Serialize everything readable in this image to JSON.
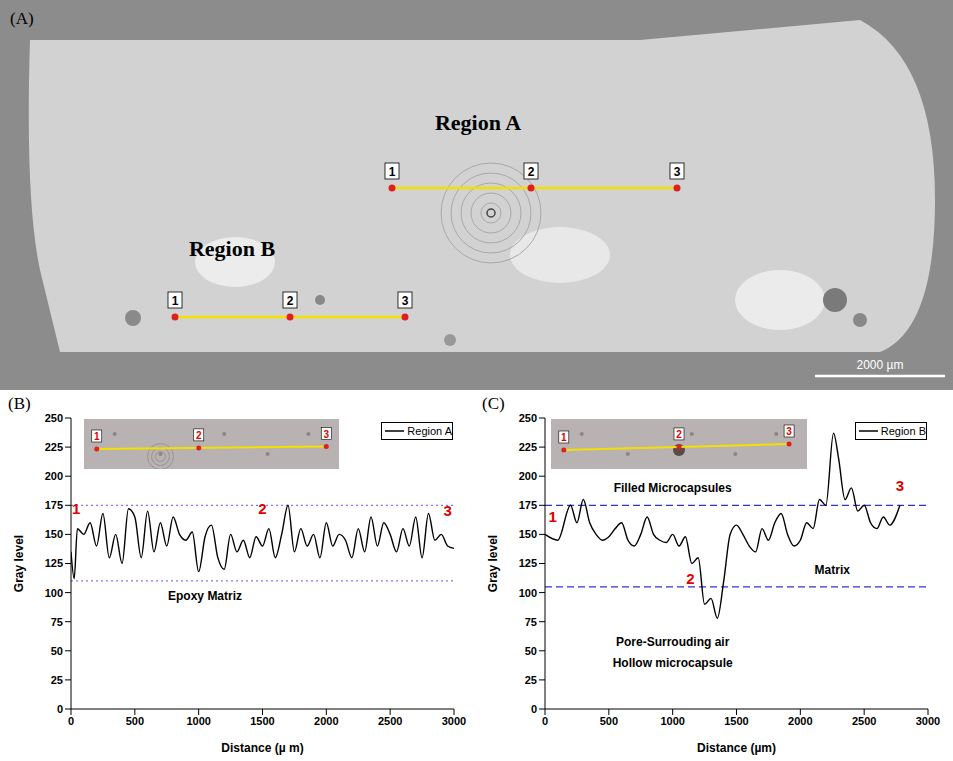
{
  "image": {
    "letter": "(A)",
    "regions": [
      {
        "label": "Region A",
        "points": [
          "1",
          "2",
          "3"
        ]
      },
      {
        "label": "Region B",
        "points": [
          "1",
          "2",
          "3"
        ]
      }
    ],
    "scale_bar": "2000 µm"
  },
  "chart_data": [
    {
      "panel": "(B)",
      "type": "line",
      "x_label": "Distance (µ m)",
      "y_label": "Gray level",
      "xlim": [
        0,
        3000
      ],
      "xticks": [
        0,
        500,
        1000,
        1500,
        2000,
        2500,
        3000
      ],
      "ylim": [
        0,
        250
      ],
      "yticks": [
        0,
        25,
        50,
        75,
        100,
        125,
        150,
        175,
        200,
        225,
        250
      ],
      "legend": "upper right",
      "series": [
        {
          "name": "Region A",
          "color": "#000000",
          "x": [
            0,
            25,
            50,
            100,
            150,
            200,
            250,
            300,
            350,
            400,
            450,
            500,
            550,
            600,
            650,
            700,
            750,
            800,
            850,
            900,
            950,
            1000,
            1050,
            1100,
            1150,
            1200,
            1250,
            1300,
            1350,
            1400,
            1450,
            1500,
            1550,
            1600,
            1650,
            1700,
            1750,
            1800,
            1850,
            1900,
            1950,
            2000,
            2050,
            2100,
            2150,
            2200,
            2250,
            2300,
            2350,
            2400,
            2450,
            2500,
            2550,
            2600,
            2650,
            2700,
            2750,
            2800,
            2850,
            2900,
            2950,
            3000
          ],
          "values": [
            135,
            112,
            155,
            150,
            160,
            140,
            168,
            130,
            150,
            125,
            172,
            165,
            130,
            170,
            135,
            160,
            140,
            165,
            150,
            145,
            152,
            118,
            148,
            158,
            130,
            120,
            150,
            135,
            145,
            130,
            148,
            140,
            155,
            130,
            150,
            175,
            135,
            155,
            140,
            150,
            130,
            160,
            140,
            150,
            145,
            130,
            155,
            135,
            165,
            140,
            160,
            150,
            135,
            155,
            140,
            165,
            130,
            168,
            145,
            150,
            140,
            138
          ]
        }
      ],
      "reference_lines": [
        {
          "y": 175,
          "color": "#7a7aff",
          "line_style": "dotted"
        },
        {
          "y": 110,
          "color": "#7a7aff",
          "line_style": "dotted"
        }
      ],
      "annotations": [
        {
          "text": "Epoxy Matriz",
          "x": 1050,
          "y": 97,
          "color": "#000000"
        },
        {
          "text": "1",
          "x": 40,
          "y": 172,
          "color": "#e00000"
        },
        {
          "text": "2",
          "x": 1500,
          "y": 172,
          "color": "#e00000"
        },
        {
          "text": "3",
          "x": 2950,
          "y": 170,
          "color": "#e00000"
        }
      ],
      "inset_labels": [
        "1",
        "2",
        "3"
      ]
    },
    {
      "panel": "(C)",
      "type": "line",
      "x_label": "Distance (µm)",
      "y_label": "Gray level",
      "xlim": [
        0,
        3000
      ],
      "xticks": [
        0,
        500,
        1000,
        1500,
        2000,
        2500,
        3000
      ],
      "ylim": [
        0,
        250
      ],
      "yticks": [
        0,
        25,
        50,
        75,
        100,
        125,
        150,
        175,
        200,
        225,
        250
      ],
      "legend": "upper right",
      "series": [
        {
          "name": "Region B",
          "color": "#000000",
          "x": [
            0,
            100,
            200,
            250,
            300,
            350,
            400,
            450,
            500,
            550,
            600,
            650,
            700,
            750,
            800,
            850,
            900,
            950,
            1000,
            1050,
            1100,
            1150,
            1200,
            1250,
            1300,
            1350,
            1400,
            1450,
            1500,
            1550,
            1600,
            1650,
            1700,
            1750,
            1800,
            1850,
            1900,
            1950,
            2000,
            2050,
            2100,
            2150,
            2200,
            2260,
            2300,
            2350,
            2400,
            2450,
            2500,
            2550,
            2600,
            2650,
            2700,
            2780
          ],
          "values": [
            150,
            145,
            175,
            160,
            180,
            160,
            150,
            145,
            148,
            155,
            160,
            145,
            140,
            150,
            165,
            150,
            145,
            143,
            150,
            140,
            148,
            125,
            130,
            90,
            95,
            78,
            110,
            150,
            158,
            150,
            140,
            135,
            155,
            145,
            160,
            168,
            150,
            140,
            145,
            160,
            155,
            180,
            175,
            237,
            215,
            180,
            190,
            170,
            175,
            160,
            155,
            165,
            158,
            175
          ]
        }
      ],
      "reference_lines": [
        {
          "y": 175,
          "color": "#3333cc",
          "line_style": "dashed"
        },
        {
          "y": 105,
          "color": "#3333cc",
          "line_style": "dashed"
        }
      ],
      "annotations": [
        {
          "text": "Filled Microcapsules",
          "x": 1000,
          "y": 190,
          "color": "#000000"
        },
        {
          "text": "Matrix",
          "x": 2250,
          "y": 120,
          "color": "#000000"
        },
        {
          "text": "Pore-Surrouding air",
          "x": 1000,
          "y": 58,
          "color": "#000000"
        },
        {
          "text": "Hollow microcapsule",
          "x": 1000,
          "y": 40,
          "color": "#000000"
        },
        {
          "text": "1",
          "x": 60,
          "y": 165,
          "color": "#e00000"
        },
        {
          "text": "2",
          "x": 1140,
          "y": 112,
          "color": "#e00000"
        },
        {
          "text": "3",
          "x": 2780,
          "y": 192,
          "color": "#e00000"
        }
      ],
      "inset_labels": [
        "1",
        "2",
        "3"
      ]
    }
  ]
}
